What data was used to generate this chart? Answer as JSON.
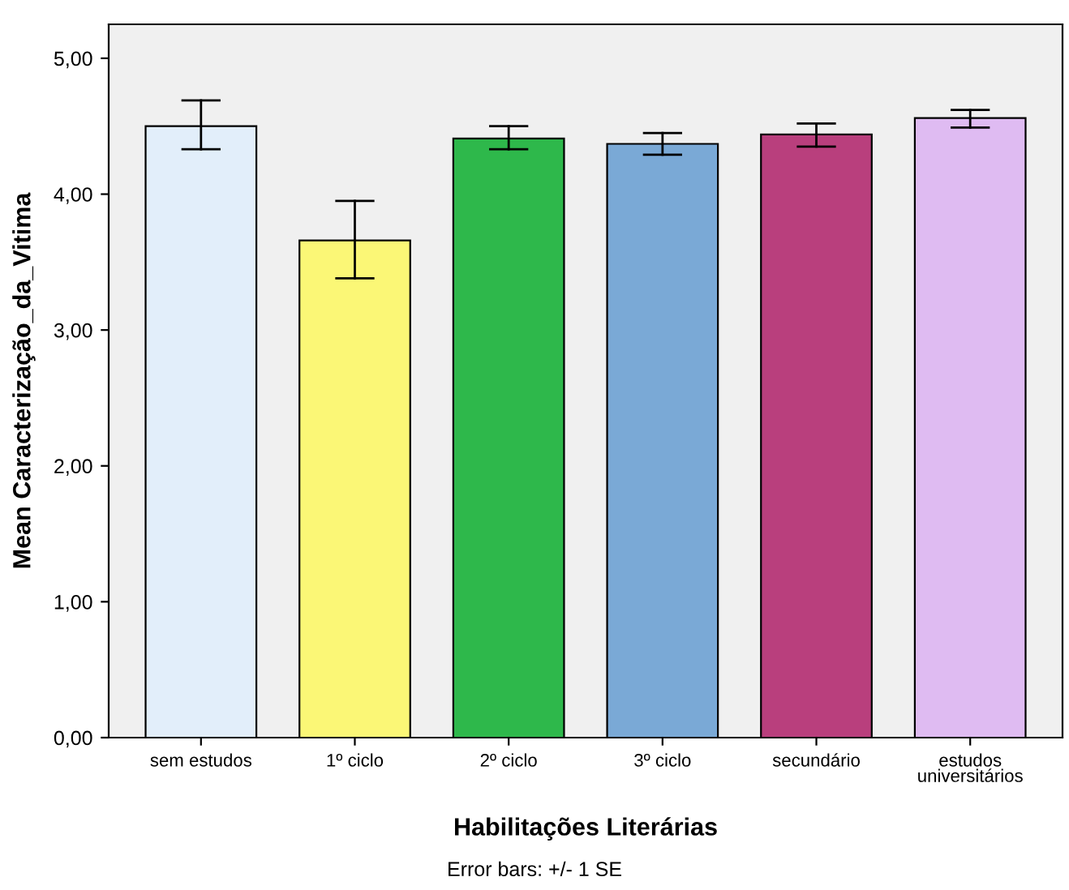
{
  "chart_data": {
    "type": "bar",
    "categories": [
      "sem estudos",
      "1º ciclo",
      "2º ciclo",
      "3º ciclo",
      "secundário",
      "estudos\nuniversitários"
    ],
    "values": [
      4.5,
      3.66,
      4.41,
      4.37,
      4.44,
      4.56
    ],
    "colors": [
      "#e2eefa",
      "#fbf776",
      "#2eb84b",
      "#7aa9d6",
      "#b93f7d",
      "#dfbbf2"
    ],
    "errors": [
      [
        4.33,
        4.69
      ],
      [
        3.38,
        3.95
      ],
      [
        4.33,
        4.5
      ],
      [
        4.29,
        4.45
      ],
      [
        4.35,
        4.52
      ],
      [
        4.49,
        4.62
      ]
    ],
    "xlabel": "Habilitações Literárias",
    "ylabel": "Mean Caracterização_da_Vitima",
    "ylim": [
      0,
      5.25
    ],
    "yticks": [
      {
        "value": 0,
        "label": "0,00"
      },
      {
        "value": 1,
        "label": "1,00"
      },
      {
        "value": 2,
        "label": "2,00"
      },
      {
        "value": 3,
        "label": "3,00"
      },
      {
        "value": 4,
        "label": "4,00"
      },
      {
        "value": 5,
        "label": "5,00"
      }
    ],
    "annotations": [
      "Error bars: +/- 1 SE"
    ],
    "grid": false,
    "legend": false
  }
}
